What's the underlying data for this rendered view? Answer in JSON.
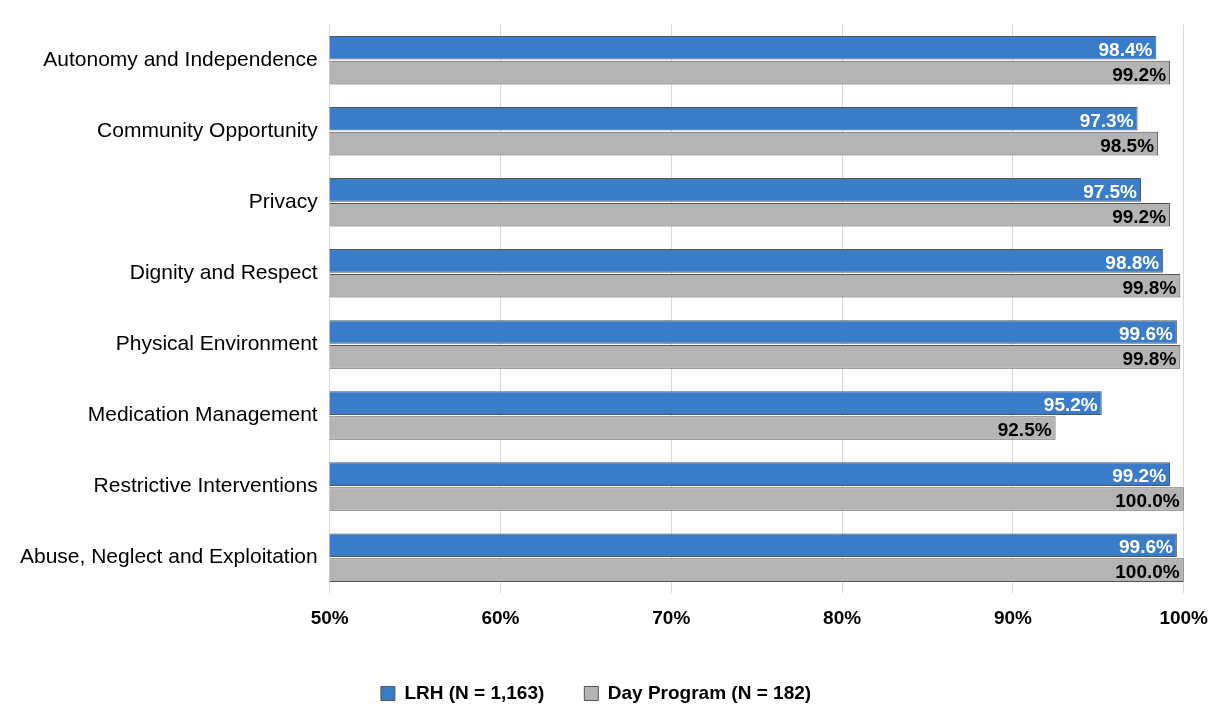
{
  "chart_data": {
    "type": "bar",
    "orientation": "horizontal",
    "categories": [
      "Autonomy and Independence",
      "Community Opportunity",
      "Privacy",
      "Dignity and Respect",
      "Physical Environment",
      "Medication Management",
      "Restrictive Interventions",
      "Abuse, Neglect and Exploitation"
    ],
    "series": [
      {
        "name": "LRH (N = 1,163)",
        "color": "#3a7cc8",
        "values": [
          98.4,
          97.3,
          97.5,
          98.8,
          99.6,
          95.2,
          99.2,
          99.6
        ],
        "value_labels": [
          "98.4%",
          "97.3%",
          "97.5%",
          "98.8%",
          "99.6%",
          "95.2%",
          "99.2%",
          "99.6%"
        ]
      },
      {
        "name": "Day Program (N = 182)",
        "color": "#b4b4b4",
        "values": [
          99.2,
          98.5,
          99.2,
          99.8,
          99.8,
          92.5,
          100,
          100
        ],
        "value_labels": [
          "99.2%",
          "98.5%",
          "99.2%",
          "99.8%",
          "99.8%",
          "92.5%",
          "100.0%",
          "100.0%"
        ]
      }
    ],
    "xlim": [
      50,
      100
    ],
    "xticks": [
      {
        "value": 50,
        "label": "50%"
      },
      {
        "value": 60,
        "label": "60%"
      },
      {
        "value": 70,
        "label": "70%"
      },
      {
        "value": 80,
        "label": "80%"
      },
      {
        "value": 90,
        "label": "90%"
      },
      {
        "value": 100,
        "label": "100%"
      }
    ],
    "grid": "x",
    "legend": "bottom"
  }
}
